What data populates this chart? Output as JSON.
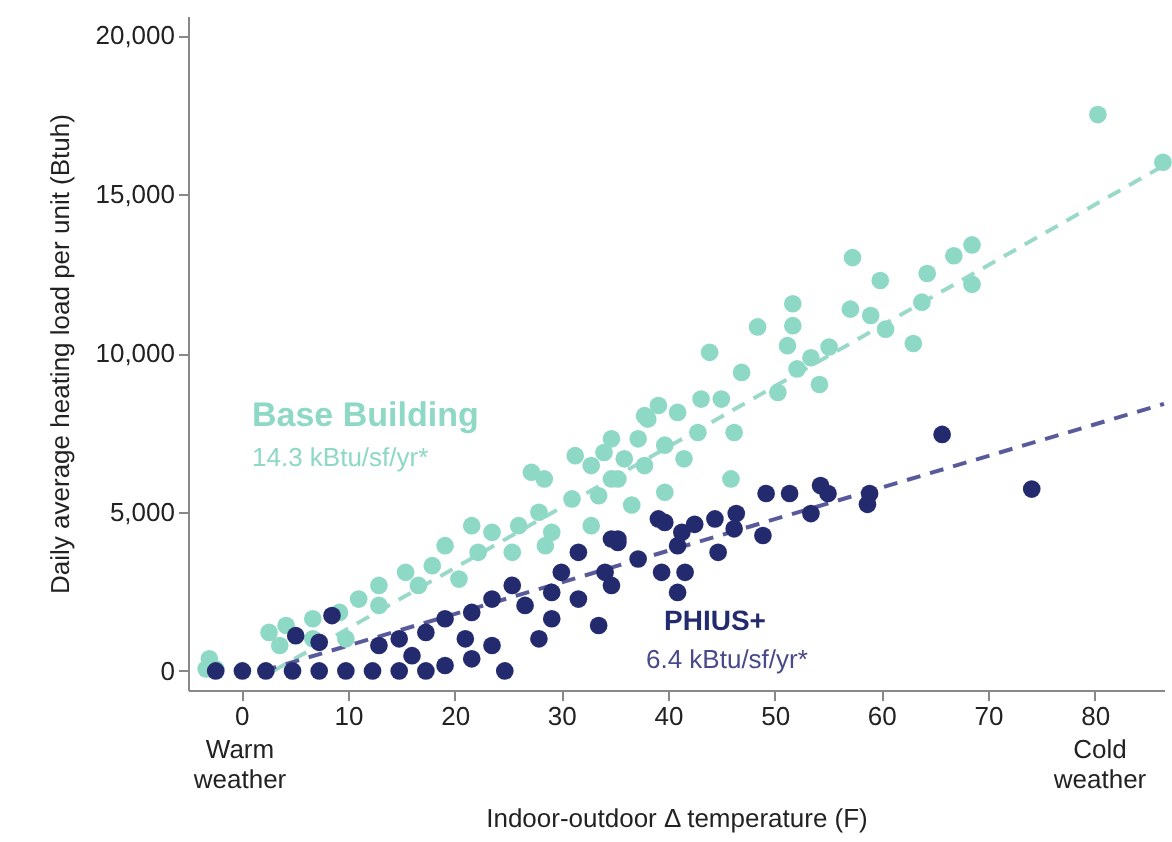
{
  "chart_data": {
    "type": "scatter",
    "xlabel": "Indoor-outdoor Δ temperature (F)",
    "ylabel": "Daily average heating load per unit (Btuh)",
    "xlim": [
      -5,
      86.5
    ],
    "ylim": [
      -600,
      20600
    ],
    "xticks": [
      0,
      10,
      20,
      30,
      40,
      50,
      60,
      70,
      80
    ],
    "yticks": [
      0,
      {
        "value": 5000,
        "label": "5,000"
      },
      {
        "value": 10000,
        "label": "10,000"
      },
      {
        "value": 15000,
        "label": "15,000"
      },
      {
        "value": 20000,
        "label": "20,000"
      }
    ],
    "grid": false,
    "marker": "circle",
    "series": [
      {
        "type": "line",
        "marker": "none",
        "color": "#9ad9c9",
        "line_style": "dashed",
        "x": [
          3,
          86.5
        ],
        "values": [
          0,
          15900
        ]
      },
      {
        "type": "line",
        "marker": "none",
        "color": "#595a9a",
        "line_style": "dashed",
        "x": [
          2,
          86.5
        ],
        "values": [
          0,
          8400
        ]
      },
      {
        "name": "Base Building",
        "color": "#8ed8c6",
        "x": [
          80.3,
          86.4,
          57.3,
          68.5,
          66.8,
          68.5,
          64.3,
          59.9,
          63.8,
          63.0,
          51.7,
          51.7,
          57.1,
          59.0,
          60.4,
          48.4,
          43.9,
          55.1,
          53.4,
          51.2,
          54.2,
          52.1,
          50.3,
          46.9,
          45,
          43.1,
          40.9,
          38.1,
          42.8,
          46.2,
          39.7,
          37.2,
          35.9,
          34,
          41.5,
          45.9,
          39.7,
          34.7,
          36.6,
          33.5,
          27.2,
          28.4,
          31.3,
          37.8,
          39.1,
          34.7,
          32.8,
          35.3,
          37.8,
          31,
          27.9,
          26,
          23.5,
          21.6,
          19.1,
          22.2,
          25.4,
          29.1,
          32.8,
          17.9,
          15.4,
          12.9,
          11,
          12.9,
          9.2,
          6.7,
          4.2,
          2.6,
          3.6,
          6.7,
          -3,
          -2.4,
          -3.3,
          9.8,
          16.6,
          20.4,
          28.5
        ],
        "values": [
          17500,
          16000,
          13000,
          13400,
          13060,
          12160,
          12500,
          12280,
          11600,
          10300,
          11550,
          10860,
          11380,
          11180,
          10750,
          10820,
          10020,
          10190,
          9850,
          10230,
          9010,
          9500,
          8760,
          9390,
          8550,
          8550,
          8130,
          7920,
          7500,
          7500,
          7100,
          7300,
          6670,
          6870,
          6670,
          6040,
          5620,
          6040,
          5220,
          5510,
          6250,
          6040,
          6770,
          8030,
          8350,
          7300,
          6460,
          6040,
          6460,
          5410,
          4990,
          4570,
          4360,
          4570,
          3940,
          3730,
          3730,
          4360,
          4570,
          3310,
          3100,
          2690,
          2260,
          2060,
          1840,
          1640,
          1430,
          1210,
          800,
          1010,
          380,
          60,
          60,
          1010,
          2690,
          2890,
          3940
        ]
      },
      {
        "name": "PHIUS+",
        "color": "#232b6e",
        "x": [
          65.7,
          74.1,
          58.9,
          58.7,
          55,
          54.3,
          53.4,
          51.4,
          49.2,
          48.9,
          46.4,
          46.2,
          44.7,
          44.4,
          42.5,
          41.3,
          39.7,
          40.9,
          41.6,
          39.4,
          40.9,
          37.2,
          35.3,
          34.7,
          33.5,
          35.3,
          39.1,
          31.6,
          30,
          34.1,
          25.4,
          23.5,
          21.6,
          19.1,
          17.3,
          14.8,
          12.9,
          8.5,
          5.1,
          7.3,
          -2.4,
          0.1,
          2.3,
          4.8,
          7.3,
          9.8,
          12.3,
          14.8,
          17.3,
          19.1,
          21.6,
          24.7,
          23.5,
          27.9,
          29.1,
          31.6,
          29.1,
          26.6,
          21,
          16,
          34.7
        ],
        "values": [
          7440,
          5720,
          5580,
          5240,
          5580,
          5830,
          4950,
          5580,
          5580,
          4260,
          4950,
          4470,
          3730,
          4780,
          4610,
          4360,
          4670,
          3940,
          3100,
          3100,
          2470,
          3520,
          4040,
          2690,
          1430,
          4150,
          4780,
          3730,
          3100,
          3100,
          2690,
          2260,
          1840,
          1640,
          1210,
          1010,
          800,
          1740,
          1110,
          900,
          0,
          0,
          0,
          0,
          0,
          0,
          0,
          0,
          0,
          170,
          380,
          0,
          800,
          1010,
          1640,
          2260,
          2470,
          2060,
          1010,
          480,
          4150
        ]
      }
    ],
    "annotations": [
      "14.3 kBtu/sf/yr*",
      "6.4 kBtu/sf/yr*",
      "Warm weather",
      "Cold weather"
    ]
  }
}
